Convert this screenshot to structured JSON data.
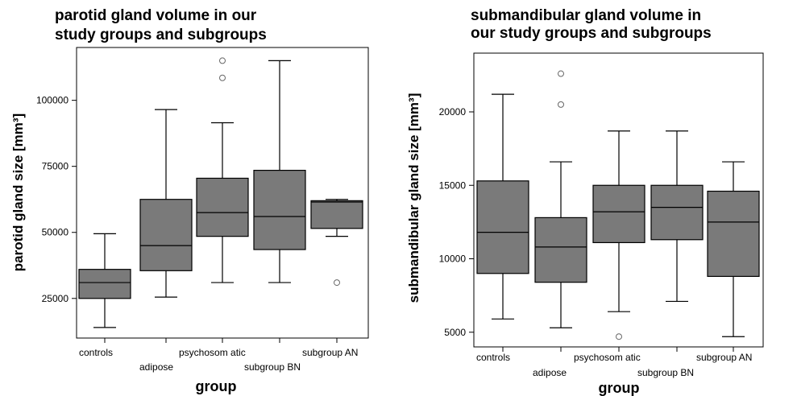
{
  "chart_data": [
    {
      "type": "box",
      "title": [
        "parotid gland volume in our",
        "study groups and subgroups"
      ],
      "ylabel": "parotid gland size [mm³]",
      "xlabel": "group",
      "ylim": [
        10000,
        120000
      ],
      "yticks": [
        25000,
        50000,
        75000,
        100000
      ],
      "ytick_labels": [
        "25000",
        "50000",
        "75000",
        "100000"
      ],
      "categories": [
        "controls",
        "adipose",
        "psychosom atic",
        "subgroup BN",
        "subgroup AN"
      ],
      "boxes": [
        {
          "whisker_low": 14000,
          "q1": 25000,
          "median": 31000,
          "q3": 36000,
          "whisker_high": 49500,
          "outliers": []
        },
        {
          "whisker_low": 25500,
          "q1": 35500,
          "median": 45000,
          "q3": 62500,
          "whisker_high": 96500,
          "outliers": []
        },
        {
          "whisker_low": 31000,
          "q1": 48500,
          "median": 57500,
          "q3": 70500,
          "whisker_high": 91500,
          "outliers": [
            108500,
            115000
          ]
        },
        {
          "whisker_low": 31000,
          "q1": 43500,
          "median": 56000,
          "q3": 73500,
          "whisker_high": 115000,
          "outliers": []
        },
        {
          "whisker_low": 48500,
          "q1": 51500,
          "median": 61500,
          "q3": 62000,
          "whisker_high": 62500,
          "outliers": [
            31000
          ]
        }
      ],
      "box_color": "#7a7a7a"
    },
    {
      "type": "box",
      "title": [
        "submandibular gland volume in",
        "our study groups and subgroups"
      ],
      "ylabel": "submandibular gland size [mm³]",
      "xlabel": "group",
      "ylim": [
        4000,
        24000
      ],
      "yticks": [
        5000,
        10000,
        15000,
        20000
      ],
      "ytick_labels": [
        "5000",
        "10000",
        "15000",
        "20000"
      ],
      "categories": [
        "controls",
        "adipose",
        "psychosom atic",
        "subgroup BN",
        "subgroup AN"
      ],
      "boxes": [
        {
          "whisker_low": 5900,
          "q1": 9000,
          "median": 11800,
          "q3": 15300,
          "whisker_high": 21200,
          "outliers": []
        },
        {
          "whisker_low": 5300,
          "q1": 8400,
          "median": 10800,
          "q3": 12800,
          "whisker_high": 16600,
          "outliers": [
            20500,
            22600
          ]
        },
        {
          "whisker_low": 6400,
          "q1": 11100,
          "median": 13200,
          "q3": 15000,
          "whisker_high": 18700,
          "outliers": [
            4700
          ]
        },
        {
          "whisker_low": 7100,
          "q1": 11300,
          "median": 13500,
          "q3": 15000,
          "whisker_high": 18700,
          "outliers": []
        },
        {
          "whisker_low": 4700,
          "q1": 8800,
          "median": 12500,
          "q3": 14600,
          "whisker_high": 16600,
          "outliers": []
        }
      ],
      "box_color": "#7a7a7a"
    }
  ]
}
